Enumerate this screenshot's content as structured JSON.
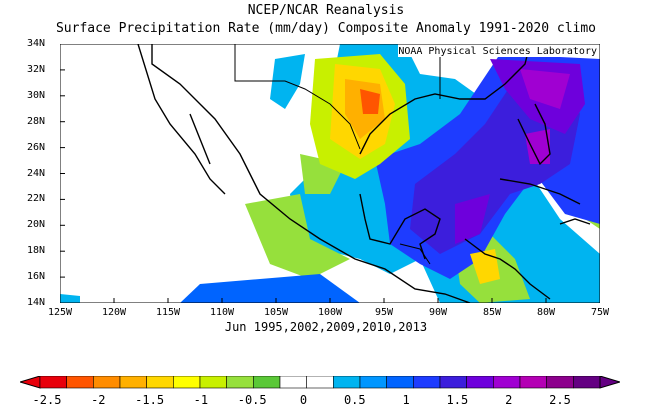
{
  "header": {
    "title": "NCEP/NCAR Reanalysis",
    "subtitle": "Surface Precipitation Rate (mm/day) Composite Anomaly 1991-2020 climo"
  },
  "map": {
    "credit": "NOAA Physical Sciences Laboratory",
    "lat_labels": [
      "34N",
      "32N",
      "30N",
      "28N",
      "26N",
      "24N",
      "22N",
      "20N",
      "18N",
      "16N",
      "14N"
    ],
    "lon_labels": [
      "125W",
      "120W",
      "115W",
      "110W",
      "105W",
      "100W",
      "95W",
      "90W",
      "85W",
      "80W",
      "75W"
    ],
    "extent": {
      "lon": [
        -125,
        -75
      ],
      "lat": [
        14,
        34
      ]
    },
    "composite_label": "Jun 1995,2002,2009,2010,2013"
  },
  "colorbar": {
    "labels": [
      "-2.5",
      "-2",
      "-1.5",
      "-1",
      "-0.5",
      "0",
      "0.5",
      "1",
      "1.5",
      "2",
      "2.5"
    ],
    "colors": [
      "#e8000b",
      "#ff5500",
      "#ff8c00",
      "#ffb000",
      "#ffd700",
      "#ffff00",
      "#c8f000",
      "#96e03c",
      "#5ac837",
      "#ffffff",
      "#ffffff",
      "#00b4f0",
      "#0096ff",
      "#0064ff",
      "#1e3cff",
      "#3c1edc",
      "#6e00dc",
      "#a000d2",
      "#b400b4",
      "#8c008c",
      "#640082"
    ]
  }
}
